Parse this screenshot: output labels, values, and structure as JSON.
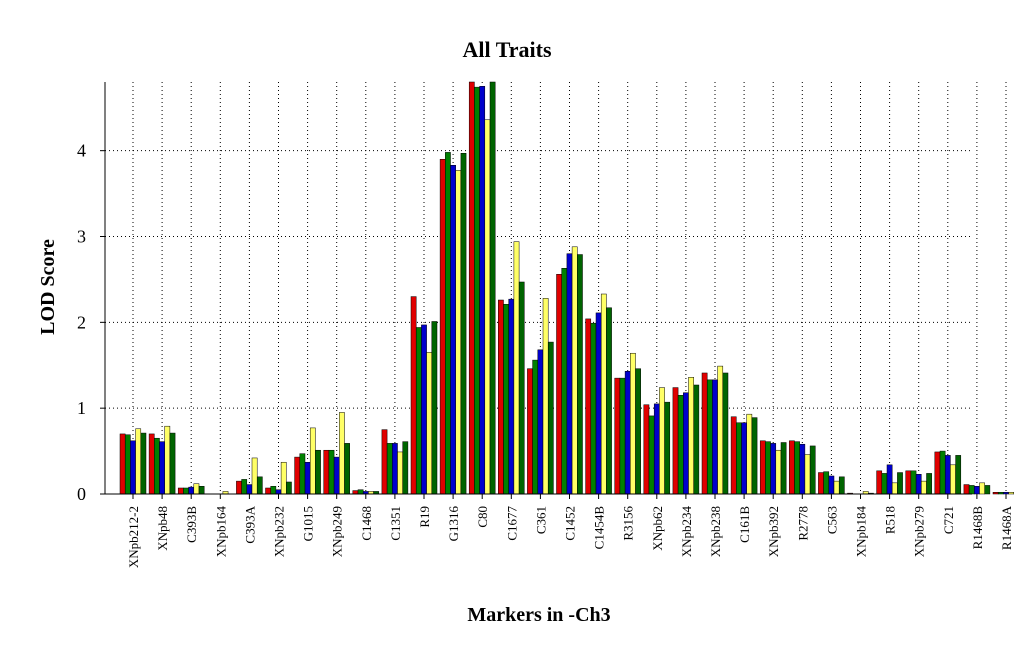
{
  "chart_data": {
    "type": "bar",
    "title": "All Traits",
    "xlabel": "Markers in -Ch3",
    "ylabel": "LOD Score",
    "ylim": [
      0,
      4.8
    ],
    "yticks": [
      0,
      1,
      2,
      3,
      4
    ],
    "grid": true,
    "colors": [
      "#e00000",
      "#008000",
      "#0000cc",
      "#ffff66",
      "#006400"
    ],
    "categories": [
      "XNpb212-2",
      "XNpb48",
      "C393B",
      "XNpb164",
      "C393A",
      "XNpb232",
      "G1015",
      "XNpb249",
      "C1468",
      "C1351",
      "R19",
      "G1316",
      "C80",
      "C1677",
      "C361",
      "C1452",
      "C1454B",
      "R3156",
      "XNpb62",
      "XNpb234",
      "XNpb238",
      "C161B",
      "XNpb392",
      "R2778",
      "C563",
      "XNpb184",
      "R518",
      "XNpb279",
      "C721",
      "R1468B",
      "R1468A"
    ],
    "series": [
      {
        "values": [
          0.7,
          0.7,
          0.07,
          0.0,
          0.15,
          0.07,
          0.43,
          0.51,
          0.04,
          0.75,
          2.3,
          3.9,
          4.8,
          2.26,
          1.46,
          2.56,
          2.04,
          1.35,
          1.04,
          1.24,
          1.41,
          0.9,
          0.62,
          0.62,
          0.25,
          0.01,
          0.27,
          0.27,
          0.49,
          0.11,
          0.02
        ]
      },
      {
        "values": [
          0.69,
          0.65,
          0.07,
          0.0,
          0.17,
          0.09,
          0.47,
          0.51,
          0.05,
          0.59,
          1.94,
          3.98,
          4.74,
          2.21,
          1.56,
          2.63,
          1.99,
          1.35,
          0.91,
          1.15,
          1.33,
          0.83,
          0.61,
          0.61,
          0.26,
          0.0,
          0.24,
          0.27,
          0.5,
          0.1,
          0.02
        ]
      },
      {
        "values": [
          0.62,
          0.61,
          0.08,
          0.0,
          0.11,
          0.05,
          0.37,
          0.43,
          0.03,
          0.59,
          1.97,
          3.83,
          4.75,
          2.27,
          1.68,
          2.8,
          2.11,
          1.43,
          1.05,
          1.18,
          1.33,
          0.83,
          0.59,
          0.58,
          0.21,
          0.0,
          0.34,
          0.23,
          0.45,
          0.09,
          0.02
        ]
      },
      {
        "values": [
          0.76,
          0.79,
          0.12,
          0.03,
          0.42,
          0.37,
          0.77,
          0.95,
          0.03,
          0.49,
          1.65,
          3.77,
          4.36,
          2.94,
          2.28,
          2.88,
          2.33,
          1.64,
          1.24,
          1.36,
          1.49,
          0.93,
          0.51,
          0.46,
          0.15,
          0.03,
          0.13,
          0.15,
          0.34,
          0.13,
          0.02
        ]
      },
      {
        "values": [
          0.71,
          0.71,
          0.09,
          0.0,
          0.2,
          0.14,
          0.51,
          0.59,
          0.03,
          0.61,
          2.01,
          3.97,
          4.8,
          2.47,
          1.77,
          2.79,
          2.17,
          1.46,
          1.07,
          1.27,
          1.41,
          0.89,
          0.6,
          0.56,
          0.2,
          0.01,
          0.25,
          0.24,
          0.45,
          0.1,
          0.02
        ]
      }
    ]
  }
}
